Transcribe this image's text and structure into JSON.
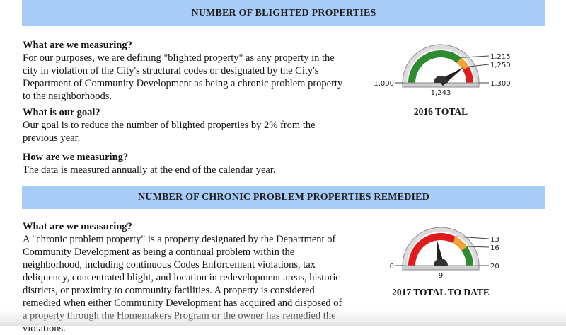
{
  "section1": {
    "title": "NUMBER OF BLIGHTED PROPERTIES",
    "measuring_q": "What are we measuring?",
    "measuring_text": "For our purposes, we are defining \"blighted property\" as any property in the city in violation of the City's structural codes or designated by the City's Department of Community Development as being a chronic problem property to the neighborhoods.",
    "goal_q": "What is our goal?",
    "goal_text": "Our goal is to reduce the number of blighted properties by 2% from the previous year.",
    "how_q": "How are we measuring?",
    "how_text": "The data is measured annually at the end of the calendar year.",
    "gauge": {
      "min_label": "1,000",
      "max_label": "1,300",
      "tick_a": "1,215",
      "tick_b": "1,250",
      "value_label": "1,243",
      "value": 1243,
      "min": 1000,
      "max": 1300,
      "bands": [
        {
          "from": 1000,
          "to": 1215,
          "color": "#2e8b2e"
        },
        {
          "from": 1215,
          "to": 1250,
          "color": "#f3a23a"
        },
        {
          "from": 1250,
          "to": 1300,
          "color": "#e01b1b"
        }
      ],
      "caption": "2016 TOTAL"
    }
  },
  "section2": {
    "title": "NUMBER OF CHRONIC PROBLEM PROPERTIES REMEDIED",
    "measuring_q": "What are we measuring?",
    "measuring_text": "A \"chronic problem property\" is a property designated by the Department of Community Development as being a continual problem within the neighborhood, including continuous Codes Enforcement violations, tax deliquency, concentrated blight, and location in redevelopment areas, historic districts, or proximity to community facilities. A property is considered remedied when either Community Development has acquired and disposed of a property through the Homemakers Program or the owner has remedied the violations.",
    "gauge": {
      "min_label": "0",
      "max_label": "20",
      "tick_a": "13",
      "tick_b": "16",
      "value_label": "9",
      "value": 9,
      "min": 0,
      "max": 20,
      "bands": [
        {
          "from": 0,
          "to": 13,
          "color": "#e01b1b"
        },
        {
          "from": 13,
          "to": 16,
          "color": "#f3a23a"
        },
        {
          "from": 16,
          "to": 20,
          "color": "#2e8b2e"
        }
      ],
      "caption": "2017 TOTAL TO DATE"
    }
  }
}
